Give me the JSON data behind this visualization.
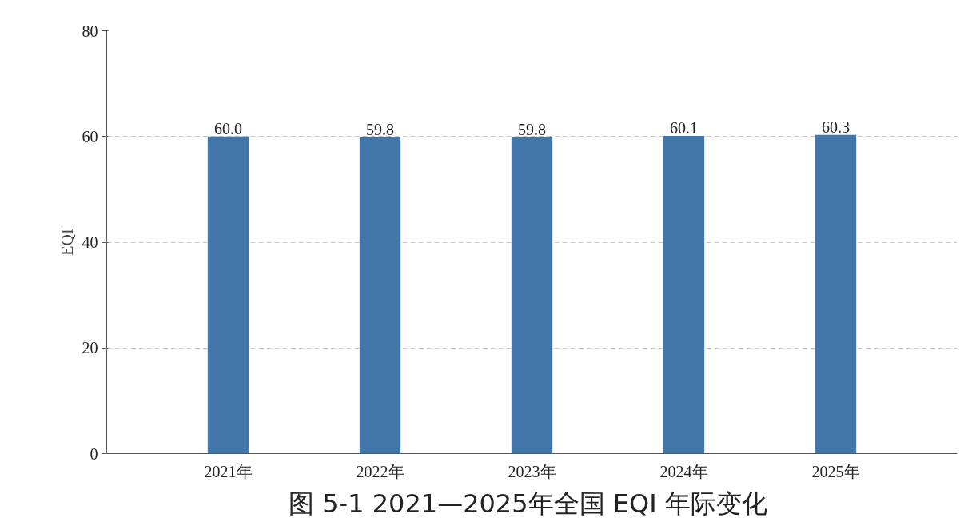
{
  "chart_data": {
    "type": "bar",
    "title": "图 5-1  2021—2025年全国 EQI 年际变化",
    "ylabel": "EQI",
    "categories": [
      "2021年",
      "2022年",
      "2023年",
      "2024年",
      "2025年"
    ],
    "values": [
      60.0,
      59.8,
      59.8,
      60.1,
      60.3
    ],
    "value_labels": [
      "60.0",
      "59.8",
      "59.8",
      "60.1",
      "60.3"
    ],
    "color": "#4275a8",
    "ylim": [
      0,
      80
    ],
    "yticks": [
      0,
      20,
      40,
      60,
      80
    ],
    "grid": "y"
  }
}
